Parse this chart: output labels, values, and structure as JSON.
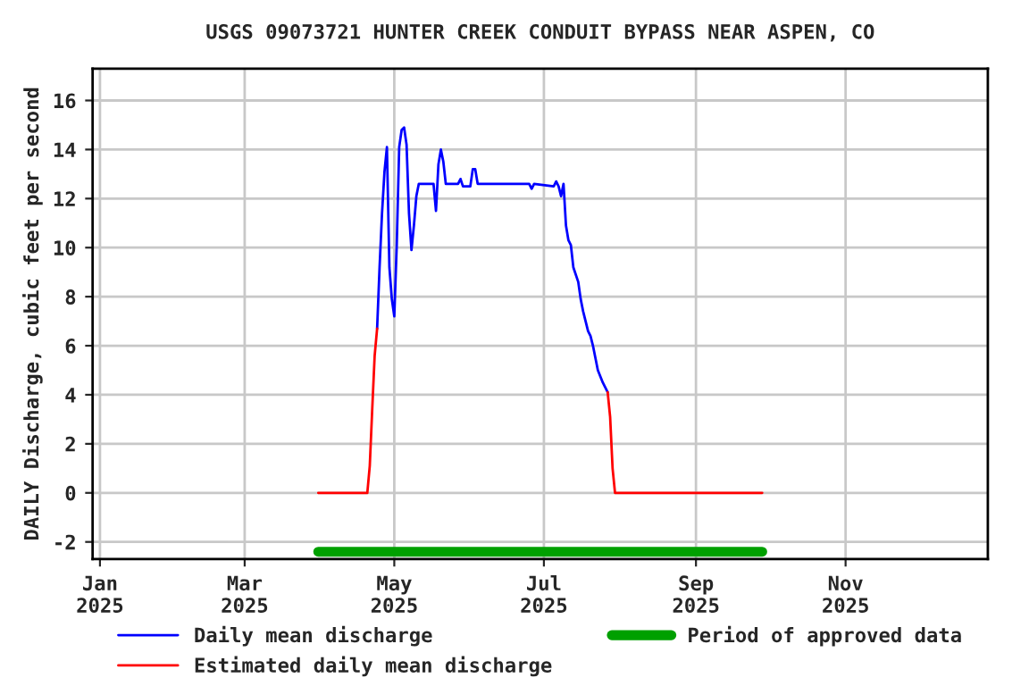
{
  "chart_data": {
    "type": "line",
    "title": "USGS 09073721 HUNTER CREEK CONDUIT BYPASS NEAR ASPEN, CO",
    "ylabel": "DAILY Discharge, cubic feet per second",
    "xlim": [
      "2024-12-29",
      "2025-12-29"
    ],
    "ylim": [
      -2.7,
      17.3
    ],
    "xticks": [
      {
        "value": "2025-01-01",
        "label": "Jan\n2025"
      },
      {
        "value": "2025-03-01",
        "label": "Mar\n2025"
      },
      {
        "value": "2025-05-01",
        "label": "May\n2025"
      },
      {
        "value": "2025-07-01",
        "label": "Jul\n2025"
      },
      {
        "value": "2025-09-01",
        "label": "Sep\n2025"
      },
      {
        "value": "2025-11-01",
        "label": "Nov\n2025"
      }
    ],
    "yticks": [
      -2,
      0,
      2,
      4,
      6,
      8,
      10,
      12,
      14,
      16
    ],
    "grid": true,
    "legend": "bottom",
    "series": [
      {
        "name": "Daily mean discharge",
        "color": "#0000ff",
        "x": [
          "2025-04-24",
          "2025-04-25",
          "2025-04-26",
          "2025-04-27",
          "2025-04-28",
          "2025-04-29",
          "2025-04-30",
          "2025-05-01",
          "2025-05-02",
          "2025-05-03",
          "2025-05-04",
          "2025-05-05",
          "2025-05-06",
          "2025-05-07",
          "2025-05-08",
          "2025-05-09",
          "2025-05-10",
          "2025-05-11",
          "2025-05-17",
          "2025-05-18",
          "2025-05-19",
          "2025-05-20",
          "2025-05-21",
          "2025-05-22",
          "2025-05-27",
          "2025-05-28",
          "2025-05-29",
          "2025-06-01",
          "2025-06-02",
          "2025-06-03",
          "2025-06-04",
          "2025-06-25",
          "2025-06-26",
          "2025-06-27",
          "2025-07-05",
          "2025-07-06",
          "2025-07-07",
          "2025-07-08",
          "2025-07-09",
          "2025-07-10",
          "2025-07-11",
          "2025-07-12",
          "2025-07-13",
          "2025-07-15",
          "2025-07-16",
          "2025-07-17",
          "2025-07-18",
          "2025-07-19",
          "2025-07-20",
          "2025-07-21",
          "2025-07-22",
          "2025-07-23",
          "2025-07-25",
          "2025-07-26",
          "2025-07-27"
        ],
        "values": [
          6.7,
          9.2,
          11.4,
          13.1,
          14.1,
          9.2,
          7.9,
          7.2,
          10.1,
          14.1,
          14.8,
          14.9,
          14.2,
          11.4,
          9.9,
          10.9,
          12.1,
          12.6,
          12.6,
          11.5,
          13.4,
          14.0,
          13.5,
          12.6,
          12.6,
          12.8,
          12.5,
          12.5,
          13.2,
          13.2,
          12.6,
          12.6,
          12.4,
          12.6,
          12.5,
          12.7,
          12.5,
          12.1,
          12.6,
          10.9,
          10.3,
          10.1,
          9.2,
          8.6,
          7.9,
          7.4,
          7.0,
          6.6,
          6.4,
          6.0,
          5.5,
          5.0,
          4.5,
          4.3,
          4.1
        ]
      },
      {
        "name": "Estimated daily mean discharge",
        "color": "#ff0000",
        "x": [
          "2025-03-31",
          "2025-04-20",
          "2025-04-21",
          "2025-04-22",
          "2025-04-23",
          "2025-04-24",
          "2025-05-15",
          "2025-07-27",
          "2025-07-28",
          "2025-07-29",
          "2025-07-30",
          "2025-09-28"
        ],
        "values": [
          0,
          0,
          1.1,
          3.4,
          5.6,
          6.7,
          null,
          4.1,
          3.1,
          1.0,
          0,
          0
        ]
      },
      {
        "name": "Period of approved data",
        "color": "#00a000",
        "x": [
          "2025-03-31",
          "2025-09-28"
        ],
        "values": [
          -2.4,
          -2.4
        ]
      }
    ]
  }
}
